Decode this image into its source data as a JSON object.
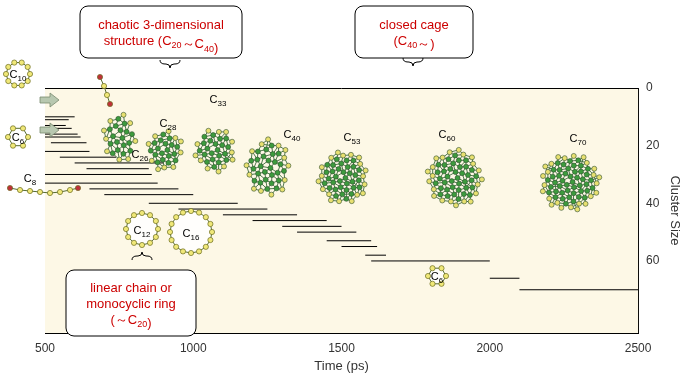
{
  "chart_data": {
    "type": "line",
    "xlabel": "Time (ps)",
    "ylabel": "Cluster Size",
    "xlim": [
      500,
      2500
    ],
    "xticks": [
      500,
      1000,
      1500,
      2000,
      2500
    ],
    "ylim": [
      0,
      85
    ],
    "yticks": [
      0,
      20,
      40,
      60
    ],
    "grid": false,
    "color": "#000000",
    "segments": [
      {
        "x": [
          500,
          600
        ],
        "y": 10
      },
      {
        "x": [
          500,
          580
        ],
        "y": 11
      },
      {
        "x": [
          500,
          570
        ],
        "y": 13
      },
      {
        "x": [
          500,
          590
        ],
        "y": 14
      },
      {
        "x": [
          500,
          610
        ],
        "y": 16
      },
      {
        "x": [
          500,
          620
        ],
        "y": 17
      },
      {
        "x": [
          520,
          640
        ],
        "y": 19
      },
      {
        "x": [
          500,
          650
        ],
        "y": 22
      },
      {
        "x": [
          550,
          740
        ],
        "y": 24
      },
      {
        "x": [
          600,
          900
        ],
        "y": 26
      },
      {
        "x": [
          640,
          850
        ],
        "y": 28
      },
      {
        "x": [
          500,
          860
        ],
        "y": 30
      },
      {
        "x": [
          500,
          880
        ],
        "y": 33
      },
      {
        "x": [
          650,
          950
        ],
        "y": 35
      },
      {
        "x": [
          700,
          1000
        ],
        "y": 37
      },
      {
        "x": [
          850,
          1150
        ],
        "y": 40
      },
      {
        "x": [
          950,
          1250
        ],
        "y": 42
      },
      {
        "x": [
          1100,
          1350
        ],
        "y": 44
      },
      {
        "x": [
          1200,
          1450
        ],
        "y": 46
      },
      {
        "x": [
          1300,
          1500
        ],
        "y": 48
      },
      {
        "x": [
          1350,
          1550
        ],
        "y": 50
      },
      {
        "x": [
          1450,
          1600
        ],
        "y": 53
      },
      {
        "x": [
          1500,
          1620
        ],
        "y": 55
      },
      {
        "x": [
          1580,
          1650
        ],
        "y": 58
      },
      {
        "x": [
          1600,
          2000
        ],
        "y": 60
      },
      {
        "x": [
          2000,
          2100
        ],
        "y": 66
      },
      {
        "x": [
          2100,
          2500
        ],
        "y": 70
      }
    ],
    "annotations": [
      "C10",
      "C6",
      "C8",
      "C26",
      "C28",
      "C33",
      "C40",
      "C53",
      "C60",
      "C70",
      "C12",
      "C16",
      "C6"
    ],
    "callouts": [
      {
        "lines": [
          "chaotic 3-dimensional",
          "structure (C20～C40)"
        ]
      },
      {
        "lines": [
          "closed cage",
          "(C40～)"
        ]
      },
      {
        "lines": [
          "linear chain or",
          "monocyclic ring",
          "(～C20)"
        ]
      }
    ]
  }
}
